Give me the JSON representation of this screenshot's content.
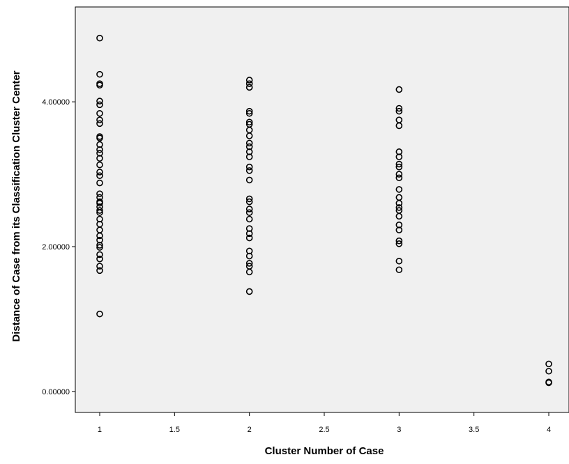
{
  "chart_data": {
    "type": "scatter",
    "x_label": "Cluster Number of Case",
    "y_label": "Distance of Case from its Classification Cluster Center",
    "color": "#000000",
    "plot_background": "#f0f0f0",
    "xlim": [
      0.837,
      4.135
    ],
    "ylim": [
      -0.29,
      5.31
    ],
    "xticks": [
      1,
      1.5,
      2,
      2.5,
      3,
      3.5,
      4
    ],
    "yticks": [
      {
        "value": 0,
        "label": "0.00000"
      },
      {
        "value": 2,
        "label": "2.00000"
      },
      {
        "value": 4,
        "label": "4.00000"
      }
    ],
    "x": [
      1,
      1,
      1,
      1,
      1,
      1,
      1,
      1,
      1,
      1,
      1,
      1,
      1,
      1,
      1,
      1,
      1,
      1,
      1,
      1,
      1,
      1,
      1,
      1,
      1,
      1,
      1,
      1,
      1,
      1,
      1,
      1,
      1,
      1,
      1,
      1,
      1,
      1,
      2,
      2,
      2,
      2,
      2,
      2,
      2,
      2,
      2,
      2,
      2,
      2,
      2,
      2,
      2,
      2,
      2,
      2,
      2,
      2,
      2,
      2,
      2,
      2,
      2,
      2,
      2,
      2,
      2,
      2,
      3,
      3,
      3,
      3,
      3,
      3,
      3,
      3,
      3,
      3,
      3,
      3,
      3,
      3,
      3,
      3,
      3,
      3,
      3,
      3,
      3,
      3,
      3,
      4,
      4,
      4,
      4
    ],
    "values": [
      4.88,
      4.38,
      4.25,
      4.23,
      4.01,
      3.96,
      3.84,
      3.75,
      3.7,
      3.52,
      3.5,
      3.41,
      3.34,
      3.29,
      3.22,
      3.13,
      3.03,
      2.98,
      2.88,
      2.73,
      2.68,
      2.62,
      2.55,
      2.47,
      2.38,
      2.31,
      2.23,
      2.15,
      2.09,
      1.99,
      1.89,
      1.83,
      1.73,
      1.67,
      2.6,
      2.5,
      2.02,
      1.07,
      4.3,
      4.25,
      4.2,
      3.87,
      3.84,
      3.72,
      3.69,
      3.61,
      3.53,
      3.43,
      3.38,
      3.31,
      3.24,
      3.1,
      3.05,
      2.92,
      2.66,
      2.62,
      2.52,
      2.47,
      2.38,
      2.25,
      2.18,
      2.12,
      1.94,
      1.87,
      1.77,
      1.73,
      1.65,
      1.38,
      4.17,
      3.91,
      3.87,
      3.75,
      3.67,
      3.31,
      3.24,
      3.14,
      3.1,
      3.0,
      2.95,
      2.79,
      2.68,
      2.6,
      2.54,
      2.5,
      2.42,
      2.3,
      2.23,
      2.08,
      2.04,
      1.8,
      1.68,
      0.38,
      0.28,
      0.13,
      0.12
    ]
  }
}
